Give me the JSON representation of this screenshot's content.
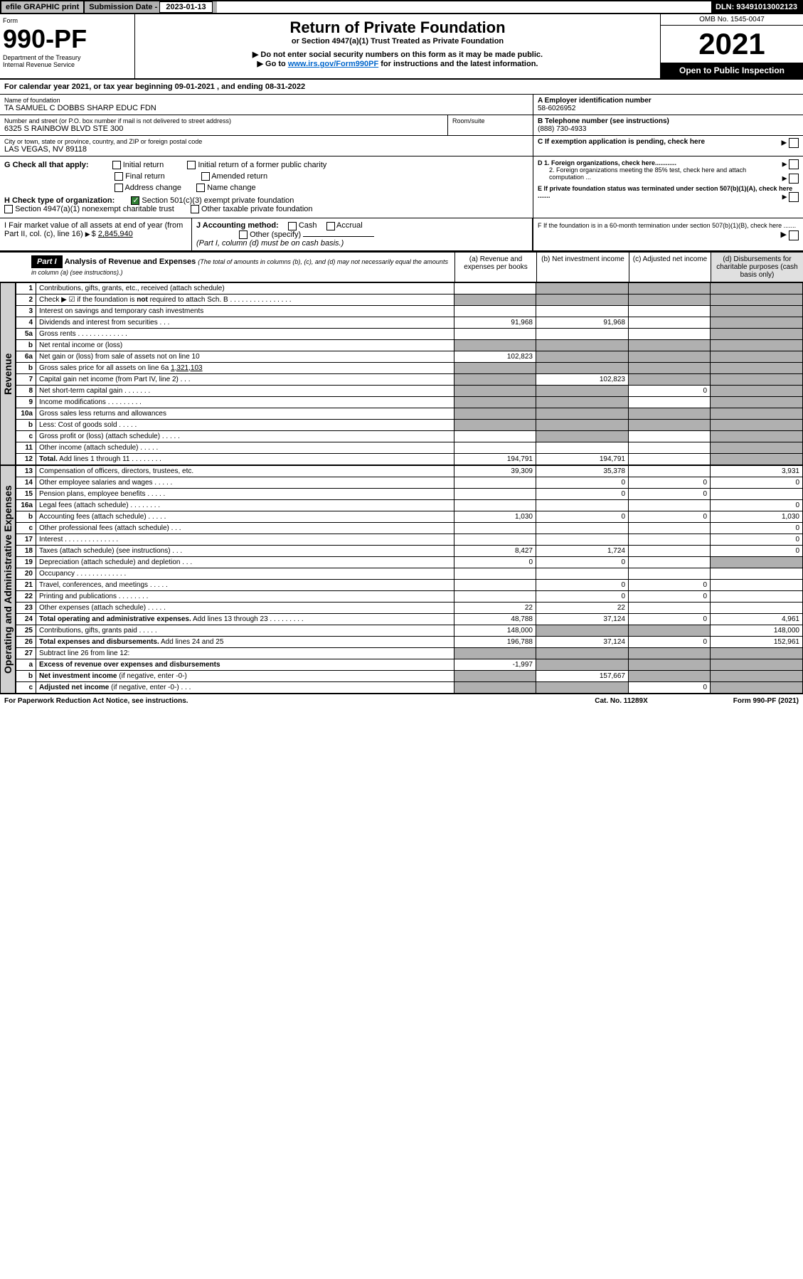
{
  "colors": {
    "grey": "#b0b0b0",
    "dark": "#000000",
    "green": "#2e7d32",
    "link": "#0066cc"
  },
  "topbar": {
    "efile": "efile GRAPHIC print",
    "subdate_label": "Submission Date - ",
    "subdate_value": "2023-01-13",
    "dln": "DLN: 93491013002123"
  },
  "header": {
    "form_word": "Form",
    "form_no": "990-PF",
    "dept1": "Department of the Treasury",
    "dept2": "Internal Revenue Service",
    "title": "Return of Private Foundation",
    "subtitle": "or Section 4947(a)(1) Trust Treated as Private Foundation",
    "note1": "▶ Do not enter social security numbers on this form as it may be made public.",
    "note2_pre": "▶ Go to ",
    "note2_link": "www.irs.gov/Form990PF",
    "note2_post": " for instructions and the latest information.",
    "omb": "OMB No. 1545-0047",
    "year": "2021",
    "open": "Open to Public Inspection"
  },
  "calendar": {
    "pre": "For calendar year 2021, or tax year beginning ",
    "begin": "09-01-2021",
    "mid": " , and ending ",
    "end": "08-31-2022"
  },
  "entity": {
    "name_lbl": "Name of foundation",
    "name": "TA SAMUEL C DOBBS SHARP EDUC FDN",
    "addr_lbl": "Number and street (or P.O. box number if mail is not delivered to street address)",
    "addr": "6325 S RAINBOW BLVD STE 300",
    "room_lbl": "Room/suite",
    "city_lbl": "City or town, state or province, country, and ZIP or foreign postal code",
    "city": "LAS VEGAS, NV  89118",
    "a_lbl": "A Employer identification number",
    "a_val": "58-6026952",
    "b_lbl": "B Telephone number (see instructions)",
    "b_val": "(888) 730-4933",
    "c_lbl": "C If exemption application is pending, check here",
    "d1": "D 1. Foreign organizations, check here............",
    "d2": "2. Foreign organizations meeting the 85% test, check here and attach computation ...",
    "e": "E  If private foundation status was terminated under section 507(b)(1)(A), check here .......",
    "f": "F  If the foundation is in a 60-month termination under section 507(b)(1)(B), check here .......",
    "g_lbl": "G Check all that apply:",
    "g_opts": [
      "Initial return",
      "Initial return of a former public charity",
      "Final return",
      "Amended return",
      "Address change",
      "Name change"
    ],
    "h_lbl": "H Check type of organization:",
    "h_opt1": "Section 501(c)(3) exempt private foundation",
    "h_opt1_checked": true,
    "h_opt2": "Section 4947(a)(1) nonexempt charitable trust",
    "h_opt3": "Other taxable private foundation",
    "i_lbl": "I Fair market value of all assets at end of year (from Part II, col. (c), line 16)",
    "i_val": "2,845,940",
    "j_lbl": "J Accounting method:",
    "j_cash": "Cash",
    "j_accrual": "Accrual",
    "j_other": "Other (specify)",
    "j_note": "(Part I, column (d) must be on cash basis.)"
  },
  "part1": {
    "label": "Part I",
    "title": "Analysis of Revenue and Expenses",
    "title_note": "(The total of amounts in columns (b), (c), and (d) may not necessarily equal the amounts in column (a) (see instructions).)",
    "col_a": "(a) Revenue and expenses per books",
    "col_b": "(b) Net investment income",
    "col_c": "(c) Adjusted net income",
    "col_d": "(d) Disbursements for charitable purposes (cash basis only)",
    "side_rev": "Revenue",
    "side_exp": "Operating and Administrative Expenses"
  },
  "rows": [
    {
      "n": "1",
      "lbl": "Contributions, gifts, grants, etc., received (attach schedule)",
      "a": "",
      "b": "g",
      "c": "g",
      "d": "g"
    },
    {
      "n": "2",
      "lbl": "Check ▶ ☑ if the foundation is <b>not</b> required to attach Sch. B  . . . . . . . . . . . . . . . .",
      "a": "g",
      "b": "g",
      "c": "g",
      "d": "g"
    },
    {
      "n": "3",
      "lbl": "Interest on savings and temporary cash investments",
      "a": "",
      "b": "",
      "c": "",
      "d": "g"
    },
    {
      "n": "4",
      "lbl": "Dividends and interest from securities  . . .",
      "a": "91,968",
      "b": "91,968",
      "c": "",
      "d": "g"
    },
    {
      "n": "5a",
      "lbl": "Gross rents  . . . . . . . . . . . . .",
      "a": "",
      "b": "",
      "c": "",
      "d": "g"
    },
    {
      "n": "b",
      "lbl": "Net rental income or (loss)  ",
      "a": "g",
      "b": "g",
      "c": "g",
      "d": "g"
    },
    {
      "n": "6a",
      "lbl": "Net gain or (loss) from sale of assets not on line 10",
      "a": "102,823",
      "b": "g",
      "c": "g",
      "d": "g"
    },
    {
      "n": "b",
      "lbl": "Gross sales price for all assets on line 6a <u>        1,321,103</u>",
      "a": "g",
      "b": "g",
      "c": "g",
      "d": "g"
    },
    {
      "n": "7",
      "lbl": "Capital gain net income (from Part IV, line 2)  . . .",
      "a": "g",
      "b": "102,823",
      "c": "g",
      "d": "g"
    },
    {
      "n": "8",
      "lbl": "Net short-term capital gain  . . . . . . .",
      "a": "g",
      "b": "g",
      "c": "0",
      "d": "g"
    },
    {
      "n": "9",
      "lbl": "Income modifications  . . . . . . . . .",
      "a": "g",
      "b": "g",
      "c": "",
      "d": "g"
    },
    {
      "n": "10a",
      "lbl": "Gross sales less returns and allowances  ",
      "a": "g",
      "b": "g",
      "c": "g",
      "d": "g"
    },
    {
      "n": "b",
      "lbl": "Less: Cost of goods sold  . . . . .",
      "a": "g",
      "b": "g",
      "c": "g",
      "d": "g"
    },
    {
      "n": "c",
      "lbl": "Gross profit or (loss) (attach schedule)  . . . . .",
      "a": "",
      "b": "g",
      "c": "",
      "d": "g"
    },
    {
      "n": "11",
      "lbl": "Other income (attach schedule)  . . . . .",
      "a": "",
      "b": "",
      "c": "",
      "d": "g"
    },
    {
      "n": "12",
      "lbl": "<b>Total.</b> Add lines 1 through 11  . . . . . . . .",
      "a": "194,791",
      "b": "194,791",
      "c": "",
      "d": "g"
    }
  ],
  "exp_rows": [
    {
      "n": "13",
      "lbl": "Compensation of officers, directors, trustees, etc.",
      "a": "39,309",
      "b": "35,378",
      "c": "",
      "d": "3,931"
    },
    {
      "n": "14",
      "lbl": "Other employee salaries and wages  . . . . .",
      "a": "",
      "b": "0",
      "c": "0",
      "d": "0"
    },
    {
      "n": "15",
      "lbl": "Pension plans, employee benefits  . . . . .",
      "a": "",
      "b": "0",
      "c": "0",
      "d": ""
    },
    {
      "n": "16a",
      "lbl": "Legal fees (attach schedule)  . . . . . . . .",
      "a": "",
      "b": "",
      "c": "",
      "d": "0"
    },
    {
      "n": "b",
      "lbl": "Accounting fees (attach schedule)  . . . . .",
      "a": "1,030",
      "b": "0",
      "c": "0",
      "d": "1,030"
    },
    {
      "n": "c",
      "lbl": "Other professional fees (attach schedule)  . . .",
      "a": "",
      "b": "",
      "c": "",
      "d": "0"
    },
    {
      "n": "17",
      "lbl": "Interest  . . . . . . . . . . . . . .",
      "a": "",
      "b": "",
      "c": "",
      "d": "0"
    },
    {
      "n": "18",
      "lbl": "Taxes (attach schedule) (see instructions)  . . .",
      "a": "8,427",
      "b": "1,724",
      "c": "",
      "d": "0"
    },
    {
      "n": "19",
      "lbl": "Depreciation (attach schedule) and depletion  . . .",
      "a": "0",
      "b": "0",
      "c": "",
      "d": "g"
    },
    {
      "n": "20",
      "lbl": "Occupancy  . . . . . . . . . . . . .",
      "a": "",
      "b": "",
      "c": "",
      "d": ""
    },
    {
      "n": "21",
      "lbl": "Travel, conferences, and meetings  . . . . .",
      "a": "",
      "b": "0",
      "c": "0",
      "d": ""
    },
    {
      "n": "22",
      "lbl": "Printing and publications  . . . . . . . .",
      "a": "",
      "b": "0",
      "c": "0",
      "d": ""
    },
    {
      "n": "23",
      "lbl": "Other expenses (attach schedule)  . . . . .",
      "a": "22",
      "b": "22",
      "c": "",
      "d": ""
    },
    {
      "n": "24",
      "lbl": "<b>Total operating and administrative expenses.</b> Add lines 13 through 23  . . . . . . . . .",
      "a": "48,788",
      "b": "37,124",
      "c": "0",
      "d": "4,961"
    },
    {
      "n": "25",
      "lbl": "Contributions, gifts, grants paid  . . . . .",
      "a": "148,000",
      "b": "g",
      "c": "g",
      "d": "148,000"
    },
    {
      "n": "26",
      "lbl": "<b>Total expenses and disbursements.</b> Add lines 24 and 25",
      "a": "196,788",
      "b": "37,124",
      "c": "0",
      "d": "152,961"
    },
    {
      "n": "27",
      "lbl": "Subtract line 26 from line 12:",
      "a": "g",
      "b": "g",
      "c": "g",
      "d": "g"
    },
    {
      "n": "a",
      "lbl": "<b>Excess of revenue over expenses and disbursements</b>",
      "a": "-1,997",
      "b": "g",
      "c": "g",
      "d": "g"
    },
    {
      "n": "b",
      "lbl": "<b>Net investment income</b> (if negative, enter -0-)",
      "a": "g",
      "b": "157,667",
      "c": "g",
      "d": "g"
    },
    {
      "n": "c",
      "lbl": "<b>Adjusted net income</b> (if negative, enter -0-)  . . .",
      "a": "g",
      "b": "g",
      "c": "0",
      "d": "g"
    }
  ],
  "footer": {
    "left": "For Paperwork Reduction Act Notice, see instructions.",
    "mid": "Cat. No. 11289X",
    "right": "Form 990-PF (2021)"
  }
}
